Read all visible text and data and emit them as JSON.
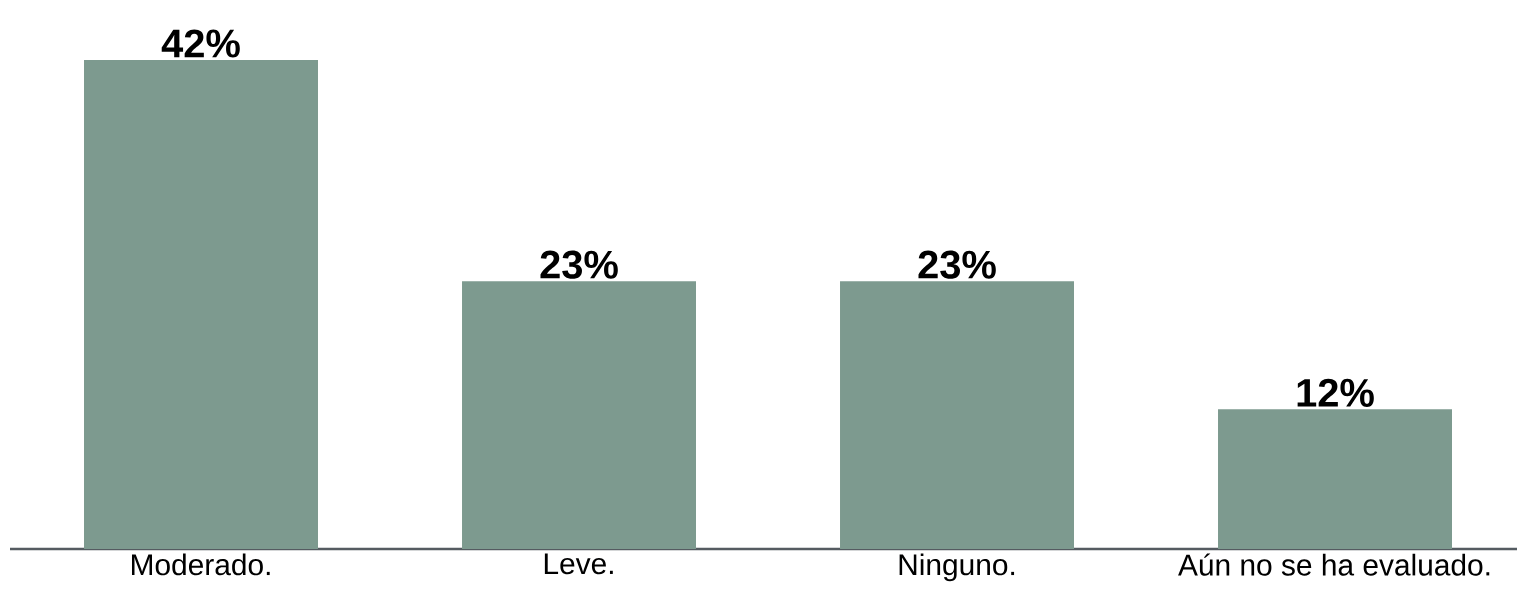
{
  "chart_data": {
    "type": "bar",
    "categories": [
      "Moderado.",
      "Leve.",
      "Ninguno.",
      "Aún no se ha evaluado."
    ],
    "values": [
      42,
      23,
      23,
      12
    ],
    "value_labels": [
      "42%",
      "23%",
      "23%",
      "12%"
    ],
    "color": "#7d9a8f"
  }
}
